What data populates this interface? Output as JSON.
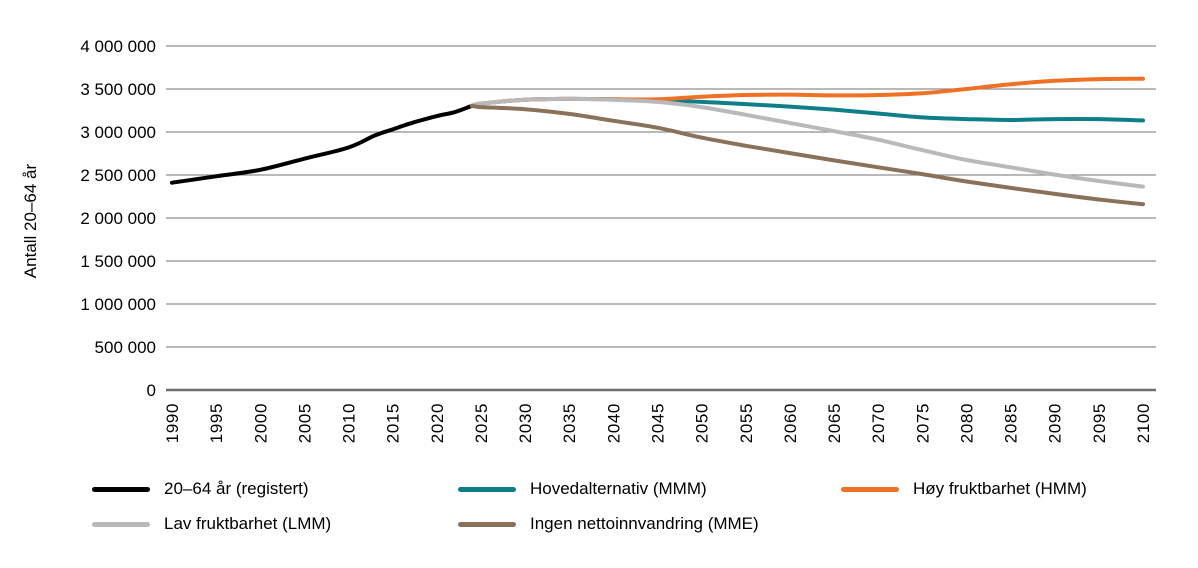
{
  "chart_data": {
    "type": "line",
    "title": "",
    "xlabel": "",
    "ylabel": "Antall 20–64 år",
    "x_range": [
      1990,
      2100
    ],
    "ylim": [
      0,
      4000000
    ],
    "grid": "horizontal",
    "legend_position": "bottom",
    "legend_columns": 3,
    "x_ticks": [
      1990,
      1995,
      2000,
      2005,
      2010,
      2015,
      2020,
      2025,
      2030,
      2035,
      2040,
      2045,
      2050,
      2055,
      2060,
      2065,
      2070,
      2075,
      2080,
      2085,
      2090,
      2095,
      2100
    ],
    "y_ticks": [
      0,
      500000,
      1000000,
      1500000,
      2000000,
      2500000,
      3000000,
      3500000,
      4000000
    ],
    "y_tick_labels": [
      "0",
      "500 000",
      "1 000 000",
      "1 500 000",
      "2 000 000",
      "2 500 000",
      "3 000 000",
      "3 500 000",
      "4 000 000"
    ],
    "axis_color": "#6f6f6f",
    "gridline_color": "#8f8f8f",
    "series": [
      {
        "name": "20–64 år (registert)",
        "color": "#000000",
        "x": [
          1990,
          1995,
          2000,
          2005,
          2010,
          2013,
          2015,
          2017,
          2020,
          2022,
          2024
        ],
        "values": [
          2410000,
          2485000,
          2560000,
          2690000,
          2820000,
          2960000,
          3030000,
          3100000,
          3185000,
          3230000,
          3305000
        ]
      },
      {
        "name": "Hovedalternativ (MMM)",
        "color": "#0e7f88",
        "x": [
          2024,
          2025,
          2030,
          2035,
          2040,
          2045,
          2050,
          2055,
          2060,
          2065,
          2070,
          2075,
          2080,
          2085,
          2090,
          2095,
          2100
        ],
        "values": [
          3305000,
          3330000,
          3375000,
          3385000,
          3380000,
          3370000,
          3350000,
          3325000,
          3295000,
          3260000,
          3215000,
          3170000,
          3150000,
          3140000,
          3150000,
          3150000,
          3135000
        ]
      },
      {
        "name": "Høy fruktbarhet (HMM)",
        "color": "#ee7125",
        "x": [
          2024,
          2025,
          2030,
          2035,
          2040,
          2045,
          2050,
          2055,
          2060,
          2065,
          2070,
          2075,
          2080,
          2085,
          2090,
          2095,
          2100
        ],
        "values": [
          3305000,
          3330000,
          3375000,
          3385000,
          3380000,
          3380000,
          3410000,
          3430000,
          3435000,
          3425000,
          3430000,
          3450000,
          3500000,
          3555000,
          3595000,
          3615000,
          3620000
        ]
      },
      {
        "name": "Lav fruktbarhet (LMM)",
        "color": "#b9b9b9",
        "x": [
          2024,
          2025,
          2030,
          2035,
          2040,
          2045,
          2050,
          2055,
          2060,
          2065,
          2070,
          2075,
          2080,
          2085,
          2090,
          2095,
          2100
        ],
        "values": [
          3305000,
          3330000,
          3375000,
          3385000,
          3375000,
          3350000,
          3290000,
          3200000,
          3105000,
          3010000,
          2910000,
          2790000,
          2675000,
          2590000,
          2505000,
          2430000,
          2365000
        ]
      },
      {
        "name": "Ingen nettoinnvandring (MME)",
        "color": "#8a7159",
        "x": [
          2024,
          2025,
          2030,
          2035,
          2040,
          2045,
          2050,
          2055,
          2060,
          2065,
          2070,
          2075,
          2080,
          2085,
          2090,
          2095,
          2100
        ],
        "values": [
          3305000,
          3290000,
          3265000,
          3210000,
          3130000,
          3050000,
          2935000,
          2840000,
          2755000,
          2670000,
          2590000,
          2510000,
          2425000,
          2350000,
          2280000,
          2215000,
          2160000
        ]
      }
    ]
  }
}
